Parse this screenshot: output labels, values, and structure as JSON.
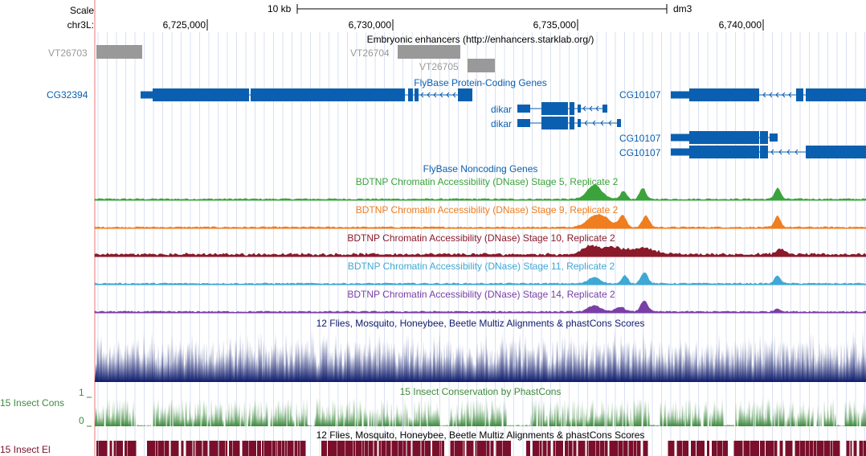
{
  "ruler": {
    "scale_label": "Scale",
    "chrom_label": "chr3L:",
    "scale_bar_label": "10 kb",
    "assembly": "dm3",
    "positions": [
      {
        "label": "6,725,000",
        "bp": 6725000
      },
      {
        "label": "6,730,000",
        "bp": 6730000
      },
      {
        "label": "6,735,000",
        "bp": 6735000
      },
      {
        "label": "6,740,000",
        "bp": 6740000
      }
    ]
  },
  "tracks": {
    "enhancers": {
      "title": "Embryonic enhancers (http://enhancers.starklab.org/)",
      "items": [
        {
          "label": "VT26703"
        },
        {
          "label": "VT26704"
        },
        {
          "label": "VT26705"
        }
      ]
    },
    "protein_coding": {
      "title": "FlyBase Protein-Coding Genes",
      "genes": [
        {
          "label": "CG32394"
        },
        {
          "label": "dikar"
        },
        {
          "label": "dikar"
        },
        {
          "label": "CG10107"
        },
        {
          "label": "CG10107"
        },
        {
          "label": "CG10107"
        }
      ]
    },
    "noncoding": {
      "title": "FlyBase Noncoding Genes"
    },
    "dnase": [
      {
        "title": "BDTNP Chromatin Accessibility (DNase) Stage 5, Replicate 2",
        "color": "#3ba33b"
      },
      {
        "title": "BDTNP Chromatin Accessibility (DNase) Stage 9, Replicate 2",
        "color": "#f07d1e"
      },
      {
        "title": "BDTNP Chromatin Accessibility (DNase) Stage 10, Replicate 2",
        "color": "#8b1a2b"
      },
      {
        "title": "BDTNP Chromatin Accessibility (DNase) Stage 11, Replicate 2",
        "color": "#3fa8d4"
      },
      {
        "title": "BDTNP Chromatin Accessibility (DNase) Stage 14, Replicate 2",
        "color": "#7a3fa6"
      }
    ],
    "multiz": {
      "title": "12 Flies, Mosquito, Honeybee, Beetle Multiz Alignments & phastCons Scores",
      "color": "#0d1a6b"
    },
    "phastcons": {
      "title": "15 Insect Conservation by PhastCons",
      "side_label": "15 Insect Cons",
      "axis_top": "1",
      "axis_bottom": "0",
      "color": "#3d8a3d"
    },
    "elements": {
      "title": "12 Flies, Mosquito, Honeybee, Beetle Multiz Alignments & phastCons Scores",
      "side_label": "15 Insect El",
      "color": "#7a0f2b"
    }
  },
  "colors": {
    "gene_blue": "#0b5fb0",
    "enhancer_gray": "#999999",
    "guide_blue": "#d9e0f2",
    "divider": "#f2a3a3"
  }
}
